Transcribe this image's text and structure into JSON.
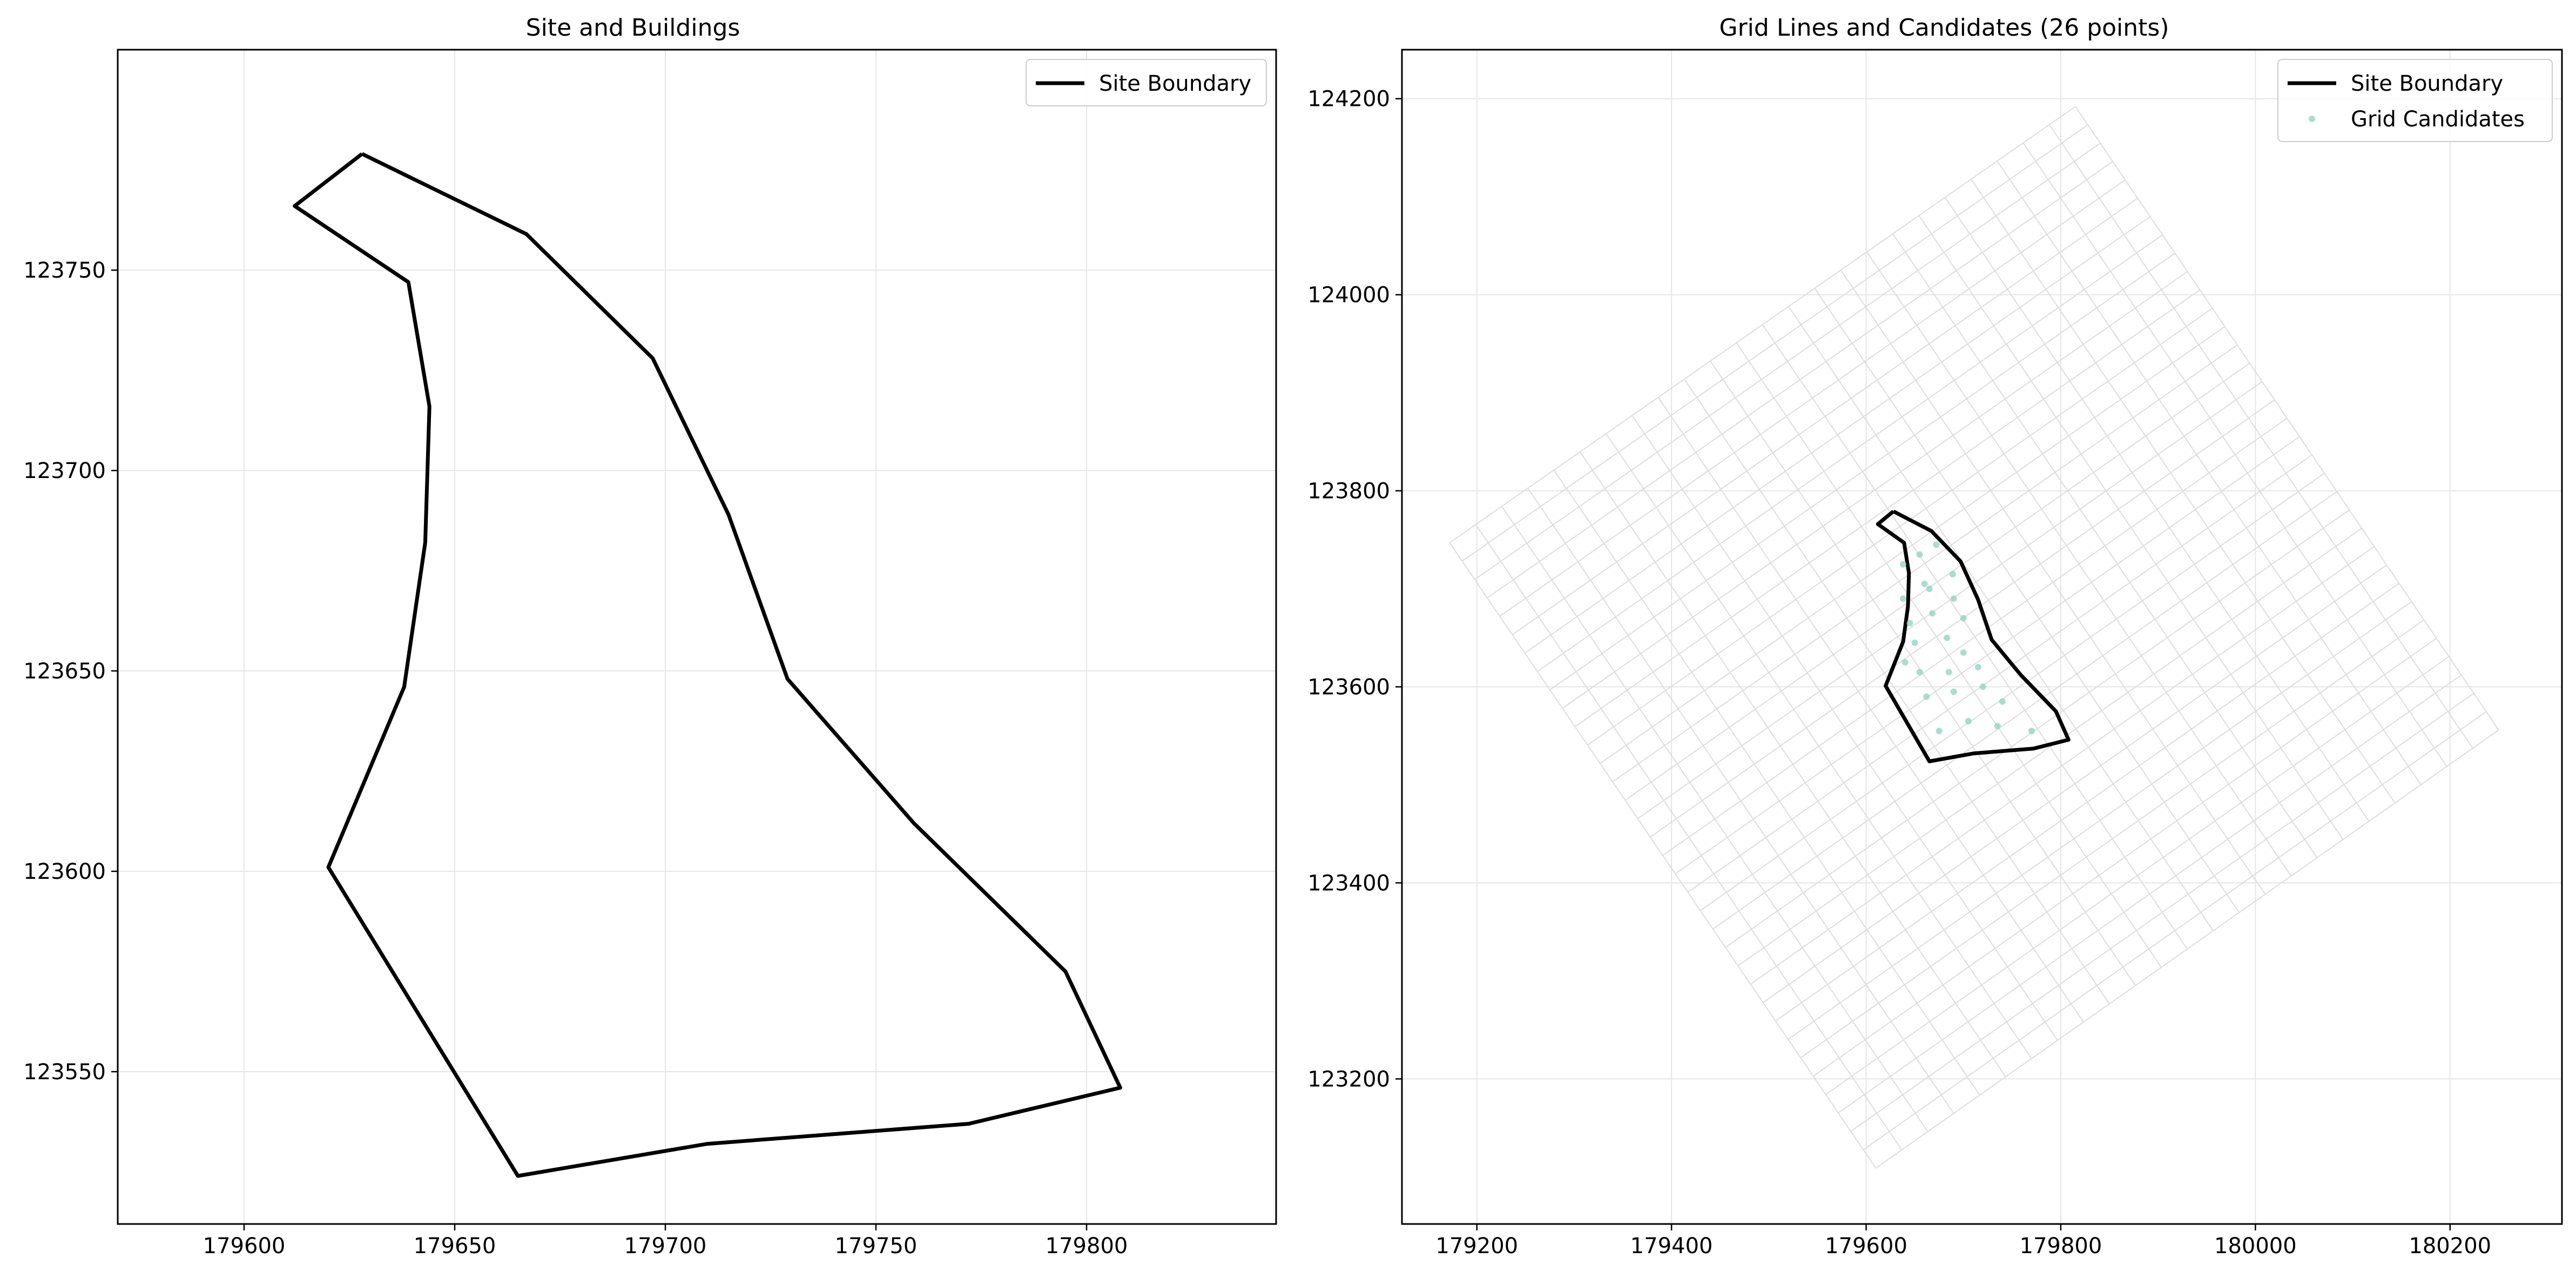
{
  "chart_data": [
    {
      "type": "line",
      "title": "Site and Buildings",
      "xlabel": "",
      "ylabel": "",
      "xlim": [
        179570,
        179845
      ],
      "ylim": [
        123512,
        123805
      ],
      "xticks": [
        179600,
        179650,
        179700,
        179750,
        179800
      ],
      "yticks": [
        123550,
        123600,
        123650,
        123700,
        123750
      ],
      "xtick_labels": [
        "179600",
        "179650",
        "179700",
        "179750",
        "179800"
      ],
      "ytick_labels": [
        "123550",
        "123600",
        "123650",
        "123700",
        "123750"
      ],
      "grid": true,
      "legend_position": "upper-right",
      "series": [
        {
          "name": "Site Boundary",
          "style": "line",
          "color": "#000000",
          "points": [
            [
              179628,
              123779
            ],
            [
              179667,
              123759
            ],
            [
              179697,
              123728
            ],
            [
              179715,
              123689
            ],
            [
              179729,
              123648
            ],
            [
              179759,
              123612
            ],
            [
              179795,
              123575
            ],
            [
              179808,
              123546
            ],
            [
              179772,
              123537
            ],
            [
              179710,
              123532
            ],
            [
              179665,
              123524
            ],
            [
              179620,
              123601
            ],
            [
              179638,
              123646
            ],
            [
              179643,
              123682
            ],
            [
              179644,
              123716
            ],
            [
              179639,
              123747
            ],
            [
              179612,
              123766
            ],
            [
              179628,
              123779
            ]
          ]
        }
      ]
    },
    {
      "type": "line",
      "title": "Grid Lines and Candidates (26 points)",
      "xlabel": "",
      "ylabel": "",
      "xlim": [
        179123,
        180315
      ],
      "ylim": [
        123052,
        124250
      ],
      "xticks": [
        179200,
        179400,
        179600,
        179800,
        180000,
        180200
      ],
      "yticks": [
        123200,
        123400,
        123600,
        123800,
        124000,
        124200
      ],
      "xtick_labels": [
        "179200",
        "179400",
        "179600",
        "179800",
        "180000",
        "180200"
      ],
      "ytick_labels": [
        "123200",
        "123400",
        "123600",
        "123800",
        "124000",
        "124200"
      ],
      "grid": true,
      "legend_position": "upper-right",
      "grid_lines": {
        "color": "#dddddd",
        "corners": [
          [
            179172,
            123747
          ],
          [
            179815,
            124192
          ],
          [
            180250,
            123556
          ],
          [
            179610,
            123109
          ]
        ],
        "divisions_u": 24,
        "divisions_v": 34
      },
      "series": [
        {
          "name": "Site Boundary",
          "style": "line",
          "color": "#000000",
          "points": [
            [
              179628,
              123779
            ],
            [
              179667,
              123759
            ],
            [
              179697,
              123728
            ],
            [
              179715,
              123689
            ],
            [
              179729,
              123648
            ],
            [
              179759,
              123612
            ],
            [
              179795,
              123575
            ],
            [
              179808,
              123546
            ],
            [
              179772,
              123537
            ],
            [
              179710,
              123532
            ],
            [
              179665,
              123524
            ],
            [
              179620,
              123601
            ],
            [
              179638,
              123646
            ],
            [
              179643,
              123682
            ],
            [
              179644,
              123716
            ],
            [
              179639,
              123747
            ],
            [
              179612,
              123766
            ],
            [
              179628,
              123779
            ]
          ]
        },
        {
          "name": "Grid Candidates",
          "style": "scatter",
          "color": "#8fd1bf",
          "points": [
            [
              179638,
              123725
            ],
            [
              179655,
              123735
            ],
            [
              179672,
              123745
            ],
            [
              179689,
              123715
            ],
            [
              179660,
              123705
            ],
            [
              179638,
              123690
            ],
            [
              179665,
              123700
            ],
            [
              179690,
              123690
            ],
            [
              179645,
              123665
            ],
            [
              179668,
              123675
            ],
            [
              179700,
              123670
            ],
            [
              179650,
              123645
            ],
            [
              179683,
              123650
            ],
            [
              179700,
              123635
            ],
            [
              179640,
              123625
            ],
            [
              179655,
              123615
            ],
            [
              179685,
              123615
            ],
            [
              179715,
              123620
            ],
            [
              179662,
              123590
            ],
            [
              179690,
              123595
            ],
            [
              179720,
              123600
            ],
            [
              179740,
              123585
            ],
            [
              179675,
              123555
            ],
            [
              179705,
              123565
            ],
            [
              179735,
              123560
            ],
            [
              179770,
              123555
            ]
          ]
        }
      ]
    }
  ]
}
